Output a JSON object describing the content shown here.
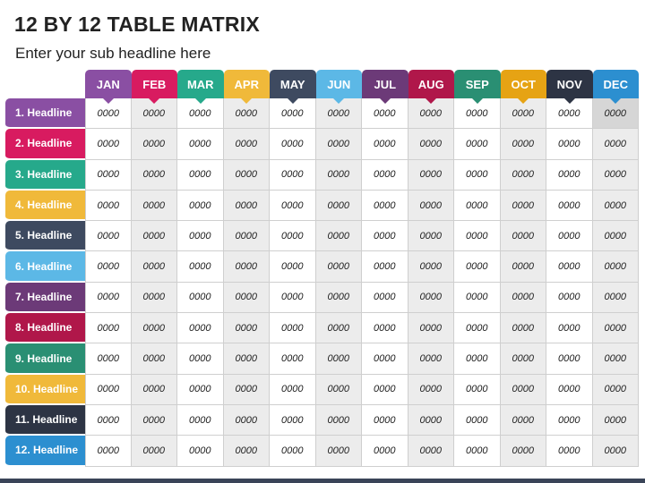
{
  "title": "12 BY 12 TABLE MATRIX",
  "subtitle": "Enter your sub headline here",
  "months": [
    {
      "label": "JAN",
      "color": "#8a4fa3"
    },
    {
      "label": "FEB",
      "color": "#d81b60"
    },
    {
      "label": "MAR",
      "color": "#26a98b"
    },
    {
      "label": "APR",
      "color": "#f0b93a"
    },
    {
      "label": "MAY",
      "color": "#3e4a60"
    },
    {
      "label": "JUN",
      "color": "#5cb8e6"
    },
    {
      "label": "JUL",
      "color": "#6c3a78"
    },
    {
      "label": "AUG",
      "color": "#b0174a"
    },
    {
      "label": "SEP",
      "color": "#2a8f73"
    },
    {
      "label": "OCT",
      "color": "#e6a314"
    },
    {
      "label": "NOV",
      "color": "#2d3444"
    },
    {
      "label": "DEC",
      "color": "#2c8fd0"
    }
  ],
  "rows": [
    {
      "label": "1. Headline",
      "color": "#8a4fa3",
      "values": [
        "0000",
        "0000",
        "0000",
        "0000",
        "0000",
        "0000",
        "0000",
        "0000",
        "0000",
        "0000",
        "0000",
        "0000"
      ]
    },
    {
      "label": "2. Headline",
      "color": "#d81b60",
      "values": [
        "0000",
        "0000",
        "0000",
        "0000",
        "0000",
        "0000",
        "0000",
        "0000",
        "0000",
        "0000",
        "0000",
        "0000"
      ]
    },
    {
      "label": "3. Headline",
      "color": "#26a98b",
      "values": [
        "0000",
        "0000",
        "0000",
        "0000",
        "0000",
        "0000",
        "0000",
        "0000",
        "0000",
        "0000",
        "0000",
        "0000"
      ]
    },
    {
      "label": "4. Headline",
      "color": "#f0b93a",
      "values": [
        "0000",
        "0000",
        "0000",
        "0000",
        "0000",
        "0000",
        "0000",
        "0000",
        "0000",
        "0000",
        "0000",
        "0000"
      ]
    },
    {
      "label": "5. Headline",
      "color": "#3e4a60",
      "values": [
        "0000",
        "0000",
        "0000",
        "0000",
        "0000",
        "0000",
        "0000",
        "0000",
        "0000",
        "0000",
        "0000",
        "0000"
      ]
    },
    {
      "label": "6. Headline",
      "color": "#5cb8e6",
      "values": [
        "0000",
        "0000",
        "0000",
        "0000",
        "0000",
        "0000",
        "0000",
        "0000",
        "0000",
        "0000",
        "0000",
        "0000"
      ]
    },
    {
      "label": "7. Headline",
      "color": "#6c3a78",
      "values": [
        "0000",
        "0000",
        "0000",
        "0000",
        "0000",
        "0000",
        "0000",
        "0000",
        "0000",
        "0000",
        "0000",
        "0000"
      ]
    },
    {
      "label": "8. Headline",
      "color": "#b0174a",
      "values": [
        "0000",
        "0000",
        "0000",
        "0000",
        "0000",
        "0000",
        "0000",
        "0000",
        "0000",
        "0000",
        "0000",
        "0000"
      ]
    },
    {
      "label": "9. Headline",
      "color": "#2a8f73",
      "values": [
        "0000",
        "0000",
        "0000",
        "0000",
        "0000",
        "0000",
        "0000",
        "0000",
        "0000",
        "0000",
        "0000",
        "0000"
      ]
    },
    {
      "label": "10. Headline",
      "color": "#f0b93a",
      "values": [
        "0000",
        "0000",
        "0000",
        "0000",
        "0000",
        "0000",
        "0000",
        "0000",
        "0000",
        "0000",
        "0000",
        "0000"
      ]
    },
    {
      "label": "11. Headline",
      "color": "#2d3444",
      "values": [
        "0000",
        "0000",
        "0000",
        "0000",
        "0000",
        "0000",
        "0000",
        "0000",
        "0000",
        "0000",
        "0000",
        "0000"
      ]
    },
    {
      "label": "12. Headline",
      "color": "#2c8fd0",
      "values": [
        "0000",
        "0000",
        "0000",
        "0000",
        "0000",
        "0000",
        "0000",
        "0000",
        "0000",
        "0000",
        "0000",
        "0000"
      ]
    }
  ]
}
